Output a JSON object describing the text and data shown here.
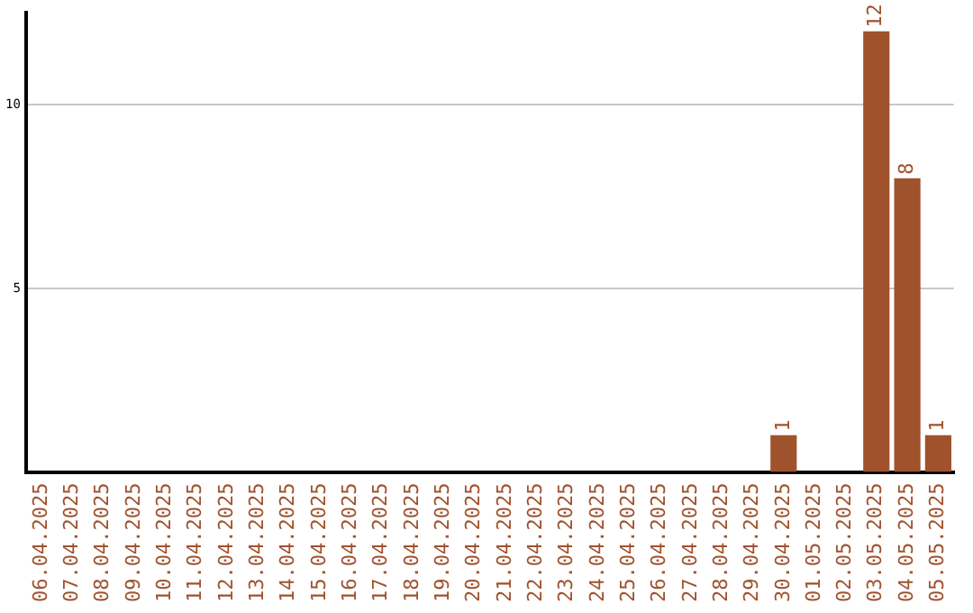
{
  "chart_data": {
    "type": "bar",
    "categories": [
      "06.04.2025",
      "07.04.2025",
      "08.04.2025",
      "09.04.2025",
      "10.04.2025",
      "11.04.2025",
      "12.04.2025",
      "13.04.2025",
      "14.04.2025",
      "15.04.2025",
      "16.04.2025",
      "17.04.2025",
      "18.04.2025",
      "19.04.2025",
      "20.04.2025",
      "21.04.2025",
      "22.04.2025",
      "23.04.2025",
      "24.04.2025",
      "25.04.2025",
      "26.04.2025",
      "27.04.2025",
      "28.04.2025",
      "29.04.2025",
      "30.04.2025",
      "01.05.2025",
      "02.05.2025",
      "03.05.2025",
      "04.05.2025",
      "05.05.2025"
    ],
    "values": [
      0,
      0,
      0,
      0,
      0,
      0,
      0,
      0,
      0,
      0,
      0,
      0,
      0,
      0,
      0,
      0,
      0,
      0,
      0,
      0,
      0,
      0,
      0,
      0,
      1,
      0,
      0,
      12,
      8,
      1
    ],
    "value_labels": [
      null,
      null,
      null,
      null,
      null,
      null,
      null,
      null,
      null,
      null,
      null,
      null,
      null,
      null,
      null,
      null,
      null,
      null,
      null,
      null,
      null,
      null,
      null,
      null,
      "1",
      null,
      null,
      "12",
      "8",
      "1"
    ],
    "color": "#a0522d",
    "ylim": [
      0,
      12.5
    ],
    "yticks": [
      5,
      10
    ],
    "grid": "y",
    "legend": false
  }
}
